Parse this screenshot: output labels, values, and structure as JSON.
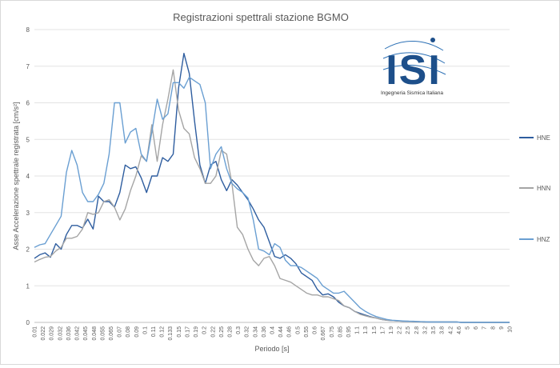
{
  "colors": {
    "HNE": "#2e5d9f",
    "HNN": "#a5a5a5",
    "HNZ": "#6a9fd2",
    "grid": "#e3e3e3",
    "axis_text": "#595959",
    "logo_blue": "#1d4f8a"
  },
  "logo": {
    "text": "ISI",
    "subtitle": "Ingegneria Sismica Italiana"
  },
  "chart_data": {
    "type": "line",
    "title": "Registrazioni spettrali stazione BGMO",
    "xlabel": "Periodo [s]",
    "ylabel": "Asse Accelerazione spettrale registrata [cm/s²]",
    "ylim": [
      0,
      8
    ],
    "yticks": [
      "0",
      "1",
      "2",
      "3",
      "4",
      "5",
      "6",
      "7",
      "8"
    ],
    "x_tick_labels": [
      "0.01",
      "0.022",
      "0.029",
      "0.032",
      "0.036",
      "0.042",
      "0.045",
      "0.048",
      "0.055",
      "0.065",
      "0.07",
      "0.08",
      "0.09",
      "0.1",
      "0.11",
      "0.12",
      "0.133",
      "0.15",
      "0.17",
      "0.19",
      "0.2",
      "0.22",
      "0.25",
      "0.28",
      "0.3",
      "0.32",
      "0.34",
      "0.36",
      "0.4",
      "0.44",
      "0.46",
      "0.5",
      "0.55",
      "0.6",
      "0.667",
      "0.75",
      "0.85",
      "0.95",
      "1.1",
      "1.3",
      "1.5",
      "1.7",
      "1.9",
      "2.2",
      "2.5",
      "2.8",
      "3.2",
      "3.5",
      "3.8",
      "4.2",
      "4.6",
      "5",
      "6",
      "7",
      "8",
      "9",
      "10"
    ],
    "grid": true,
    "legend_position": "right",
    "series": [
      {
        "name": "HNE",
        "values": [
          1.75,
          1.85,
          1.9,
          1.78,
          2.15,
          2.0,
          2.4,
          2.65,
          2.65,
          2.58,
          2.82,
          2.55,
          3.45,
          3.3,
          3.3,
          3.15,
          3.55,
          4.3,
          4.2,
          4.25,
          3.95,
          3.55,
          4.0,
          4.0,
          4.5,
          4.4,
          4.6,
          6.4,
          7.35,
          6.8,
          5.5,
          4.3,
          3.8,
          4.3,
          4.4,
          3.9,
          3.6,
          3.9,
          3.75,
          3.55,
          3.35,
          3.1,
          2.8,
          2.6,
          2.2,
          1.8,
          1.75,
          1.85,
          1.75,
          1.6,
          1.35,
          1.25,
          1.15,
          0.9,
          0.75,
          0.78,
          0.7,
          0.55,
          0.45,
          0.4,
          0.3,
          0.25,
          0.2,
          0.15,
          0.12,
          0.08,
          0.06,
          0.05,
          0.04,
          0.03,
          0.03,
          0.02,
          0.02,
          0.01,
          0.01,
          0.01,
          0.01,
          0.01,
          0.01,
          0.01,
          0.0,
          0.0,
          0.0,
          0.0,
          0.0,
          0.0,
          0.0,
          0.0,
          0.0,
          0.0
        ]
      },
      {
        "name": "HNN",
        "values": [
          1.65,
          1.72,
          1.78,
          1.8,
          1.95,
          2.05,
          2.3,
          2.3,
          2.35,
          2.55,
          3.0,
          2.95,
          3.0,
          3.3,
          3.35,
          3.15,
          2.8,
          3.1,
          3.6,
          4.0,
          4.55,
          4.4,
          5.4,
          4.4,
          5.4,
          6.1,
          6.9,
          5.8,
          5.3,
          5.15,
          4.5,
          4.2,
          3.8,
          3.8,
          4.0,
          4.7,
          4.6,
          3.8,
          2.6,
          2.4,
          2.0,
          1.7,
          1.55,
          1.75,
          1.8,
          1.55,
          1.2,
          1.15,
          1.1,
          1.0,
          0.9,
          0.8,
          0.75,
          0.75,
          0.7,
          0.7,
          0.65,
          0.6,
          0.45,
          0.4,
          0.3,
          0.22,
          0.18,
          0.14,
          0.12,
          0.08,
          0.06,
          0.05,
          0.04,
          0.03,
          0.03,
          0.02,
          0.02,
          0.01,
          0.01,
          0.01,
          0.01,
          0.01,
          0.01,
          0.01,
          0.0,
          0.0,
          0.0,
          0.0,
          0.0,
          0.0,
          0.0,
          0.0,
          0.0,
          0.0
        ]
      },
      {
        "name": "HNZ",
        "values": [
          2.05,
          2.12,
          2.15,
          2.4,
          2.65,
          2.9,
          4.1,
          4.7,
          4.3,
          3.55,
          3.3,
          3.3,
          3.5,
          3.8,
          4.6,
          6.0,
          6.0,
          4.9,
          5.2,
          5.3,
          4.6,
          4.4,
          5.2,
          6.1,
          5.55,
          5.7,
          6.55,
          6.55,
          6.4,
          6.7,
          6.6,
          6.5,
          6.0,
          4.2,
          4.6,
          4.8,
          4.2,
          3.8,
          3.65,
          3.55,
          3.4,
          2.8,
          2.0,
          1.95,
          1.85,
          2.15,
          2.05,
          1.7,
          1.55,
          1.55,
          1.5,
          1.4,
          1.3,
          1.2,
          1.0,
          0.9,
          0.8,
          0.8,
          0.85,
          0.7,
          0.55,
          0.4,
          0.3,
          0.22,
          0.16,
          0.12,
          0.08,
          0.06,
          0.05,
          0.04,
          0.03,
          0.03,
          0.02,
          0.02,
          0.01,
          0.01,
          0.01,
          0.01,
          0.01,
          0.01,
          0.0,
          0.0,
          0.0,
          0.0,
          0.0,
          0.0,
          0.0,
          0.0,
          0.0,
          0.0
        ]
      }
    ]
  }
}
